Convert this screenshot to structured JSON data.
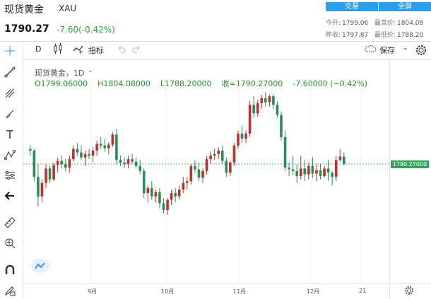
{
  "header": {
    "title": "现货黄金",
    "symbol": "XAU",
    "price": "1790.27",
    "change": "-7.60(-0.42%)",
    "trade_button": "交易",
    "fullscreen_button": "全屏",
    "stats": {
      "open_label": "今开:",
      "open": "1799.06",
      "high_label": "最高价:",
      "high": "1804.08",
      "prev_close_label": "昨收:",
      "prev_close": "1797.87",
      "low_label": "最低价:",
      "low": "1788.20"
    }
  },
  "toolbar": {
    "interval": "D",
    "indicators_label": "指标",
    "save_label": "保存"
  },
  "chart_header": {
    "title": "现货黄金，1D",
    "open": "O1799.06000",
    "high": "H1804.08000",
    "low": "L1788.20000",
    "close": "收=1790.27000",
    "change": "-7.60000 (−0.42%)"
  },
  "price_tag": "1790.27000",
  "icons": {
    "crosshair": "crosshair-icon",
    "line": "trendline-icon",
    "fib": "fib-icon",
    "brush": "brush-icon",
    "text": "text-icon",
    "pattern": "pattern-icon",
    "measure": "measure-icon",
    "back": "back-arrow-icon",
    "ruler": "ruler-icon",
    "zoom": "zoom-in-icon",
    "magnet": "magnet-icon",
    "lock": "lock-pencil-icon",
    "candles": "candles-icon",
    "undo": "undo-icon",
    "redo": "redo-icon",
    "cloud": "cloud-icon",
    "gear": "gear-icon"
  },
  "colors": {
    "up": "#b53530",
    "down": "#2e8b57",
    "accent": "#2c9ef0",
    "ref_line": "#2e8b57"
  },
  "chart_data": {
    "type": "candlestick",
    "title": "现货黄金，1D",
    "x_tick_labels": [
      "9月",
      "10月",
      "11月",
      "12月",
      "21"
    ],
    "reference_price": 1790.27,
    "last_candle": {
      "open": 1799.06,
      "high": 1804.08,
      "low": 1788.2,
      "close": 1790.27
    },
    "series": [
      [
        1808,
        1812,
        1800,
        1806
      ],
      [
        1806,
        1808,
        1770,
        1775
      ],
      [
        1775,
        1790,
        1740,
        1752
      ],
      [
        1752,
        1772,
        1745,
        1768
      ],
      [
        1768,
        1790,
        1762,
        1785
      ],
      [
        1785,
        1788,
        1768,
        1772
      ],
      [
        1772,
        1792,
        1770,
        1789
      ],
      [
        1789,
        1798,
        1780,
        1794
      ],
      [
        1794,
        1800,
        1785,
        1790
      ],
      [
        1790,
        1796,
        1782,
        1786
      ],
      [
        1786,
        1800,
        1780,
        1796
      ],
      [
        1796,
        1812,
        1793,
        1808
      ],
      [
        1808,
        1815,
        1800,
        1804
      ],
      [
        1804,
        1812,
        1795,
        1798
      ],
      [
        1798,
        1806,
        1788,
        1802
      ],
      [
        1802,
        1808,
        1796,
        1800
      ],
      [
        1800,
        1810,
        1792,
        1806
      ],
      [
        1806,
        1818,
        1800,
        1814
      ],
      [
        1814,
        1822,
        1808,
        1812
      ],
      [
        1812,
        1820,
        1805,
        1809
      ],
      [
        1809,
        1816,
        1802,
        1813
      ],
      [
        1813,
        1828,
        1810,
        1825
      ],
      [
        1825,
        1832,
        1790,
        1795
      ],
      [
        1795,
        1800,
        1788,
        1792
      ],
      [
        1792,
        1798,
        1785,
        1790
      ],
      [
        1790,
        1800,
        1785,
        1796
      ],
      [
        1796,
        1802,
        1790,
        1793
      ],
      [
        1793,
        1798,
        1785,
        1788
      ],
      [
        1788,
        1795,
        1778,
        1782
      ],
      [
        1782,
        1785,
        1750,
        1756
      ],
      [
        1756,
        1765,
        1745,
        1762
      ],
      [
        1762,
        1770,
        1748,
        1752
      ],
      [
        1752,
        1760,
        1745,
        1757
      ],
      [
        1757,
        1762,
        1738,
        1744
      ],
      [
        1744,
        1750,
        1732,
        1736
      ],
      [
        1736,
        1750,
        1730,
        1748
      ],
      [
        1748,
        1760,
        1742,
        1756
      ],
      [
        1756,
        1762,
        1745,
        1752
      ],
      [
        1752,
        1765,
        1748,
        1760
      ],
      [
        1760,
        1775,
        1756,
        1768
      ],
      [
        1768,
        1775,
        1760,
        1770
      ],
      [
        1770,
        1790,
        1766,
        1788
      ],
      [
        1788,
        1795,
        1780,
        1784
      ],
      [
        1784,
        1792,
        1770,
        1774
      ],
      [
        1774,
        1785,
        1768,
        1782
      ],
      [
        1782,
        1800,
        1778,
        1796
      ],
      [
        1796,
        1805,
        1790,
        1800
      ],
      [
        1800,
        1808,
        1795,
        1802
      ],
      [
        1802,
        1810,
        1796,
        1806
      ],
      [
        1806,
        1812,
        1790,
        1794
      ],
      [
        1794,
        1798,
        1775,
        1780
      ],
      [
        1780,
        1794,
        1776,
        1792
      ],
      [
        1792,
        1815,
        1788,
        1812
      ],
      [
        1812,
        1830,
        1808,
        1826
      ],
      [
        1826,
        1835,
        1815,
        1820
      ],
      [
        1820,
        1830,
        1815,
        1826
      ],
      [
        1826,
        1865,
        1822,
        1860
      ],
      [
        1860,
        1870,
        1845,
        1850
      ],
      [
        1850,
        1866,
        1846,
        1862
      ],
      [
        1862,
        1872,
        1855,
        1868
      ],
      [
        1868,
        1875,
        1858,
        1863
      ],
      [
        1863,
        1872,
        1858,
        1870
      ],
      [
        1870,
        1873,
        1855,
        1860
      ],
      [
        1860,
        1864,
        1845,
        1848
      ],
      [
        1848,
        1852,
        1818,
        1822
      ],
      [
        1822,
        1830,
        1782,
        1786
      ],
      [
        1786,
        1792,
        1776,
        1784
      ],
      [
        1784,
        1800,
        1778,
        1782
      ],
      [
        1782,
        1790,
        1768,
        1776
      ],
      [
        1776,
        1800,
        1772,
        1785
      ],
      [
        1785,
        1795,
        1770,
        1778
      ],
      [
        1778,
        1792,
        1772,
        1788
      ],
      [
        1788,
        1798,
        1774,
        1779
      ],
      [
        1779,
        1790,
        1770,
        1783
      ],
      [
        1783,
        1790,
        1772,
        1776
      ],
      [
        1776,
        1788,
        1774,
        1785
      ],
      [
        1785,
        1795,
        1770,
        1780
      ],
      [
        1780,
        1782,
        1765,
        1775
      ],
      [
        1775,
        1800,
        1770,
        1795
      ],
      [
        1795,
        1808,
        1793,
        1799
      ],
      [
        1799.06,
        1804.08,
        1788.2,
        1790.27
      ]
    ]
  }
}
